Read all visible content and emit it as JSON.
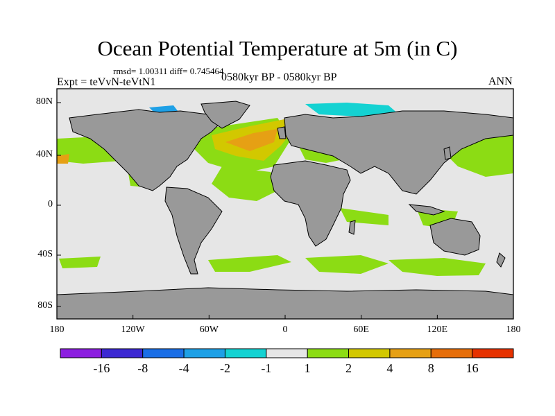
{
  "title": "Ocean Potential Temperature at 5m (in C)",
  "stats": "rmsd= 1.00311 diff= 0.745464",
  "experiment": "Expt = teVvN-teVtN1",
  "period": "0580kyr BP - 0580kyr BP",
  "season": "ANN",
  "map": {
    "projection": "cylindrical-equidistant",
    "lon_range": [
      -180,
      180
    ],
    "lat_range": [
      -90,
      90
    ],
    "x_ticks": [
      "180",
      "120W",
      "60W",
      "0",
      "60E",
      "120E",
      "180"
    ],
    "y_ticks": [
      "80N",
      "40N",
      "0",
      "40S",
      "80S"
    ],
    "land_color": "#999999",
    "ocean_near_zero_color": "#e6e6e6"
  },
  "colorbar": {
    "colors": [
      "#8c1ee0",
      "#3c28d2",
      "#1a6ee6",
      "#1ea0e6",
      "#14d2d2",
      "#e6e6e6",
      "#8cdc14",
      "#d2c800",
      "#e6a014",
      "#e66e0a",
      "#e63200"
    ],
    "labels": [
      "-16",
      "-8",
      "-4",
      "-2",
      "-1",
      "1",
      "2",
      "4",
      "8",
      "16"
    ]
  }
}
